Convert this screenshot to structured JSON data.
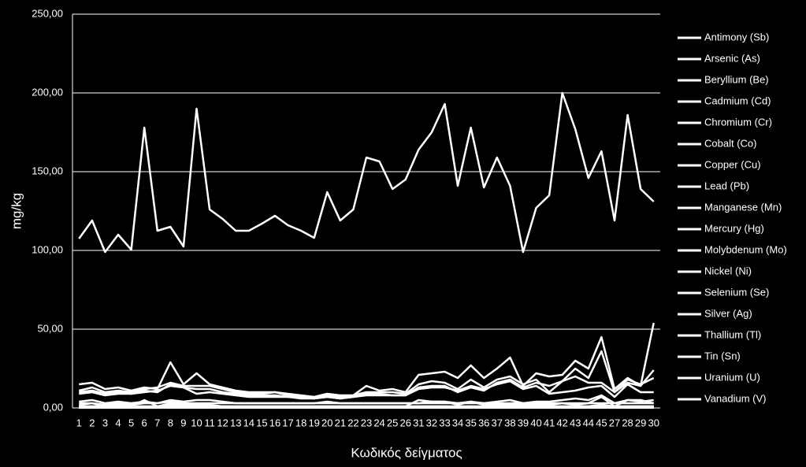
{
  "chart_data": {
    "type": "line",
    "x_label": "Κωδικός δείγματος",
    "y_label": "mg/kg",
    "categories": [
      "1",
      "2",
      "3",
      "4",
      "5",
      "6",
      "7",
      "8",
      "9",
      "10",
      "11",
      "12",
      "13",
      "14",
      "15",
      "16",
      "17",
      "18",
      "19",
      "20",
      "21",
      "22",
      "23",
      "24",
      "25",
      "26",
      "31",
      "32",
      "33",
      "34",
      "35",
      "36",
      "37",
      "38",
      "39",
      "40",
      "41",
      "42",
      "43",
      "44",
      "45",
      "27",
      "28",
      "29",
      "30"
    ],
    "ylim": [
      0,
      250
    ],
    "yticks": [
      {
        "value": 0,
        "label": "0,00"
      },
      {
        "value": 50,
        "label": "50,00"
      },
      {
        "value": 100,
        "label": "100,00"
      },
      {
        "value": 150,
        "label": "150,00"
      },
      {
        "value": 200,
        "label": "200,00"
      },
      {
        "value": 250,
        "label": "250,00"
      }
    ],
    "grid": true,
    "legend": "right",
    "series": [
      {
        "name": "Antimony (Sb)",
        "color": "#ffffff",
        "values": [
          1,
          1,
          0.5,
          1,
          0.5,
          1,
          0.5,
          1,
          1,
          1,
          1,
          0.5,
          0.5,
          0.5,
          0.5,
          0.5,
          0.5,
          0.5,
          0.5,
          0.5,
          0.5,
          0.5,
          0.5,
          0.5,
          0.5,
          0.5,
          1,
          1,
          1,
          0.5,
          1,
          0.5,
          1,
          1,
          0.5,
          1,
          1,
          1,
          1,
          1,
          2,
          0.5,
          1,
          1,
          1
        ]
      },
      {
        "name": "Arsenic (As)",
        "color": "#ffffff",
        "values": [
          2,
          3,
          1,
          2,
          1,
          5,
          1,
          3,
          2,
          2,
          2,
          1,
          1,
          1,
          1,
          1,
          1,
          1,
          1,
          1,
          1,
          1,
          1,
          1,
          1,
          1,
          5,
          4,
          4,
          2,
          4,
          2,
          2,
          2,
          2,
          2,
          2,
          3,
          2,
          3,
          7,
          1,
          5,
          5,
          3
        ]
      },
      {
        "name": "Beryllium (Be)",
        "color": "#ffffff",
        "values": [
          0.5,
          0.5,
          0.5,
          0.5,
          0.5,
          0.5,
          0.5,
          0.5,
          0.5,
          0.5,
          0.5,
          0.5,
          0.5,
          0.5,
          0.5,
          0.5,
          0.5,
          0.5,
          0.5,
          0.5,
          0.5,
          0.5,
          0.5,
          0.5,
          0.5,
          0.5,
          0.5,
          0.5,
          0.5,
          0.5,
          0.5,
          0.5,
          0.5,
          0.5,
          0.5,
          0.5,
          0.5,
          0.5,
          0.5,
          0.5,
          0.5,
          0.5,
          0.5,
          0.5,
          0.5
        ]
      },
      {
        "name": "Cadmium (Cd)",
        "color": "#ffffff",
        "values": [
          0.3,
          0.3,
          0.3,
          0.3,
          0.3,
          0.3,
          0.3,
          0.3,
          0.3,
          0.3,
          0.3,
          0.3,
          0.3,
          0.3,
          0.3,
          0.3,
          0.3,
          0.3,
          0.3,
          0.3,
          0.3,
          0.3,
          0.3,
          0.3,
          0.3,
          0.3,
          0.3,
          0.3,
          0.3,
          0.3,
          0.3,
          0.3,
          0.3,
          0.3,
          0.3,
          0.3,
          0.3,
          0.3,
          0.3,
          0.3,
          0.3,
          0.3,
          0.3,
          0.3,
          0.3
        ]
      },
      {
        "name": "Chromium (Cr)",
        "color": "#ffffff",
        "values": [
          15,
          16,
          12,
          13,
          11,
          13,
          12,
          29,
          15,
          22,
          15,
          13,
          11,
          10,
          10,
          10,
          9,
          8,
          7,
          9,
          8,
          8,
          14,
          11,
          12,
          10,
          21,
          22,
          23,
          19,
          27,
          19,
          25,
          32,
          14,
          22,
          20,
          21,
          30,
          25,
          45,
          12,
          19,
          14,
          24
        ]
      },
      {
        "name": "Cobalt (Co)",
        "color": "#ffffff",
        "values": [
          3,
          3,
          2,
          3,
          2,
          3,
          3,
          4,
          3,
          3,
          3,
          3,
          3,
          3,
          3,
          3,
          3,
          3,
          3,
          3,
          3,
          3,
          3,
          3,
          3,
          3,
          3,
          3,
          3,
          3,
          3,
          3,
          3,
          3,
          3,
          3,
          3,
          3,
          3,
          3,
          3,
          3,
          3,
          3,
          3
        ]
      },
      {
        "name": "Copper (Cu)",
        "color": "#ffffff",
        "values": [
          9,
          10,
          8,
          9,
          9,
          10,
          11,
          14,
          13,
          9,
          10,
          9,
          8,
          7,
          7,
          7,
          7,
          6,
          6,
          7,
          6,
          7,
          8,
          8,
          8,
          8,
          12,
          13,
          13,
          11,
          14,
          12,
          15,
          17,
          12,
          14,
          9,
          10,
          11,
          13,
          14,
          7,
          15,
          10,
          10
        ]
      },
      {
        "name": "Lead (Pb)",
        "color": "#ffffff",
        "values": [
          4,
          5,
          3,
          4,
          3,
          4,
          3,
          5,
          4,
          5,
          5,
          4,
          3,
          3,
          3,
          3,
          3,
          3,
          3,
          4,
          3,
          3,
          3,
          3,
          3,
          3,
          3,
          4,
          4,
          3,
          4,
          3,
          4,
          5,
          3,
          4,
          4,
          5,
          6,
          5,
          8,
          3,
          5,
          4,
          5
        ]
      },
      {
        "name": "Manganese (Mn)",
        "color": "#ffffff",
        "values": [
          107.5,
          119,
          99,
          110,
          100.5,
          178,
          112.5,
          115,
          102.5,
          190,
          126,
          120,
          112.5,
          112.5,
          117,
          122,
          116,
          112.5,
          108,
          137,
          119,
          126,
          159,
          156.5,
          139,
          145,
          164,
          175,
          193,
          141,
          178,
          140,
          159,
          141,
          99,
          127,
          135,
          200,
          177,
          146,
          163,
          119,
          186,
          139,
          131
        ]
      },
      {
        "name": "Mercury (Hg)",
        "color": "#ffffff",
        "values": [
          0.1,
          0.1,
          0.1,
          0.1,
          0.1,
          0.1,
          0.1,
          0.1,
          0.1,
          0.1,
          0.1,
          0.1,
          0.1,
          0.1,
          0.1,
          0.1,
          0.1,
          0.1,
          0.1,
          0.1,
          0.1,
          0.1,
          0.1,
          0.1,
          0.1,
          0.1,
          0.1,
          0.1,
          0.1,
          0.1,
          0.1,
          0.1,
          0.1,
          0.1,
          0.1,
          0.1,
          0.1,
          0.1,
          0.1,
          0.1,
          0.1,
          0.1,
          0.1,
          0.1,
          0.1
        ]
      },
      {
        "name": "Molybdenum (Mo)",
        "color": "#ffffff",
        "values": [
          1,
          1,
          1,
          1,
          1,
          1,
          1,
          2,
          1,
          1,
          1,
          1,
          1,
          1,
          1,
          1,
          1,
          1,
          1,
          1,
          1,
          1,
          1,
          1,
          1,
          1,
          1,
          1,
          1,
          1,
          1,
          1,
          1,
          1,
          1,
          1,
          1,
          1,
          1,
          1,
          2,
          1,
          1,
          1,
          1
        ]
      },
      {
        "name": "Nickel (Ni)",
        "color": "#ffffff",
        "values": [
          11,
          13,
          10,
          11,
          10,
          12,
          13,
          16,
          14,
          14,
          14,
          12,
          10,
          9,
          9,
          10,
          8,
          7,
          6,
          8,
          7,
          8,
          10,
          10,
          10,
          9,
          15,
          17,
          16,
          12,
          18,
          13,
          18,
          20,
          15,
          18,
          10,
          17,
          25,
          19,
          36,
          10,
          18,
          15,
          19
        ]
      },
      {
        "name": "Selenium (Se)",
        "color": "#ffffff",
        "values": [
          0.2,
          0.2,
          0.2,
          0.2,
          0.2,
          0.2,
          0.2,
          0.2,
          0.2,
          0.2,
          0.2,
          0.2,
          0.2,
          0.2,
          0.2,
          0.2,
          0.2,
          0.2,
          0.2,
          0.2,
          0.2,
          0.2,
          0.2,
          0.2,
          0.2,
          0.2,
          0.2,
          0.2,
          0.2,
          0.2,
          0.2,
          0.2,
          0.2,
          0.2,
          0.2,
          0.2,
          0.2,
          0.2,
          0.2,
          0.2,
          0.2,
          0.2,
          0.2,
          0.2,
          0.2
        ]
      },
      {
        "name": "Silver (Ag)",
        "color": "#ffffff",
        "values": [
          0.1,
          0.1,
          0.1,
          0.1,
          0.1,
          0.1,
          0.1,
          0.1,
          0.1,
          0.1,
          0.1,
          0.1,
          0.1,
          0.1,
          0.1,
          0.1,
          0.1,
          0.1,
          0.1,
          0.1,
          0.1,
          0.1,
          0.1,
          0.1,
          0.1,
          0.1,
          0.1,
          0.1,
          0.1,
          0.1,
          0.1,
          0.1,
          0.1,
          0.1,
          0.1,
          0.1,
          0.1,
          0.1,
          0.1,
          0.1,
          0.1,
          0.1,
          0.1,
          0.1,
          0.1
        ]
      },
      {
        "name": "Thallium (Tl)",
        "color": "#ffffff",
        "values": [
          0.2,
          0.2,
          0.2,
          0.2,
          0.2,
          0.2,
          0.2,
          0.2,
          0.2,
          0.2,
          0.2,
          0.2,
          0.2,
          0.2,
          0.2,
          0.2,
          0.2,
          0.2,
          0.2,
          0.2,
          0.2,
          0.2,
          0.2,
          0.2,
          0.2,
          0.2,
          0.2,
          0.2,
          0.2,
          0.2,
          0.2,
          0.2,
          0.2,
          0.2,
          0.2,
          0.2,
          0.2,
          0.2,
          0.2,
          0.2,
          0.2,
          0.2,
          0.2,
          0.2,
          0.2
        ]
      },
      {
        "name": "Tin (Sn)",
        "color": "#ffffff",
        "values": [
          1,
          1,
          1,
          1,
          1,
          1,
          1,
          1,
          1,
          1,
          1,
          1,
          1,
          1,
          1,
          1,
          1,
          1,
          1,
          1,
          1,
          1,
          1,
          1,
          1,
          1,
          1,
          1,
          1,
          1,
          1,
          1,
          1,
          1,
          1,
          1,
          1,
          1,
          1,
          1,
          1,
          1,
          1,
          1,
          1
        ]
      },
      {
        "name": "Uranium (U)",
        "color": "#ffffff",
        "values": [
          0.5,
          0.5,
          0.5,
          0.5,
          0.5,
          0.5,
          0.5,
          0.5,
          0.5,
          0.5,
          0.5,
          0.5,
          0.5,
          0.5,
          0.5,
          0.5,
          0.5,
          0.5,
          0.5,
          0.5,
          0.5,
          0.5,
          0.5,
          0.5,
          0.5,
          0.5,
          0.5,
          0.5,
          0.5,
          0.5,
          0.5,
          0.5,
          0.5,
          0.5,
          0.5,
          0.5,
          0.5,
          0.5,
          0.5,
          0.5,
          0.5,
          0.5,
          0.5,
          0.5,
          0.5
        ]
      },
      {
        "name": "Vanadium (V)",
        "color": "#ffffff",
        "values": [
          10,
          11,
          9,
          10,
          9,
          11,
          10,
          15,
          13,
          12,
          12,
          10,
          9,
          8,
          8,
          8,
          7,
          7,
          6,
          7,
          6,
          7,
          9,
          9,
          8,
          8,
          13,
          14,
          14,
          10,
          13,
          11,
          16,
          18,
          13,
          16,
          14,
          17,
          20,
          16,
          16,
          10,
          16,
          14,
          54
        ]
      }
    ]
  }
}
